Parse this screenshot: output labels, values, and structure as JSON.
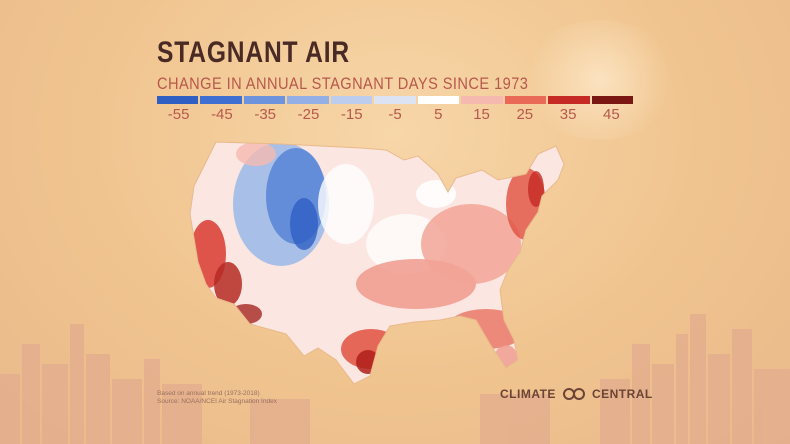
{
  "title": "STAGNANT AIR",
  "subtitle": "CHANGE IN ANNUAL STAGNANT DAYS SINCE 1973",
  "legend": {
    "labels": [
      "-55",
      "-45",
      "-35",
      "-25",
      "-15",
      "-5",
      "5",
      "15",
      "25",
      "35",
      "45"
    ],
    "colors": [
      "#2f5fc3",
      "#3f6fd0",
      "#6e93dd",
      "#94afe6",
      "#bccdee",
      "#dce4f3",
      "#ffffff",
      "#f5b9b0",
      "#e86a57",
      "#c52b24",
      "#7a1712"
    ]
  },
  "source_lines": [
    "Based on annual trend (1973-2018)",
    "Source: NOAA/NCEI Air Stagnation Index"
  ],
  "logo": {
    "left_word": "CLIMATE",
    "right_word": "CENTRAL"
  },
  "colors": {
    "title": "#4a2a24",
    "subtitle": "#b7584c",
    "background": "#f0c48f",
    "skyline": "#e0a98c"
  }
}
